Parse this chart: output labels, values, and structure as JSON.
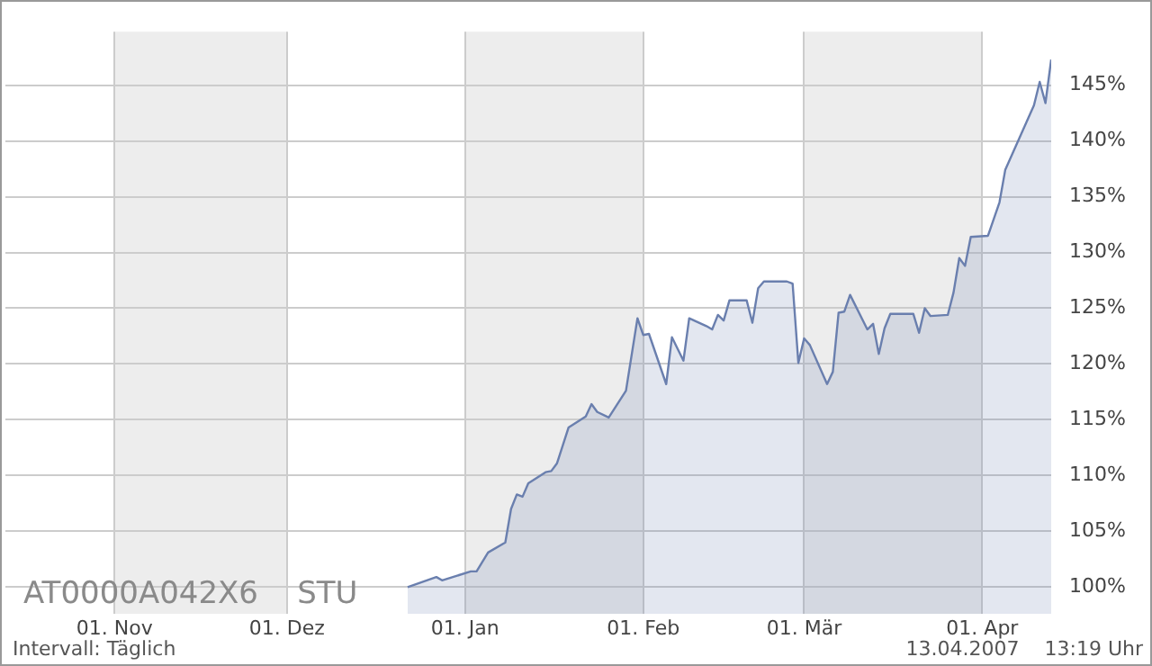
{
  "chart_data": {
    "type": "area",
    "x": [
      "2006-12-22",
      "2006-12-27",
      "2006-12-28",
      "2007-01-02",
      "2007-01-03",
      "2007-01-05",
      "2007-01-08",
      "2007-01-09",
      "2007-01-10",
      "2007-01-11",
      "2007-01-12",
      "2007-01-15",
      "2007-01-16",
      "2007-01-17",
      "2007-01-19",
      "2007-01-22",
      "2007-01-23",
      "2007-01-24",
      "2007-01-26",
      "2007-01-29",
      "2007-01-31",
      "2007-02-01",
      "2007-02-02",
      "2007-02-05",
      "2007-02-06",
      "2007-02-08",
      "2007-02-09",
      "2007-02-12",
      "2007-02-13",
      "2007-02-14",
      "2007-02-15",
      "2007-02-16",
      "2007-02-19",
      "2007-02-20",
      "2007-02-21",
      "2007-02-22",
      "2007-02-26",
      "2007-02-27",
      "2007-02-28",
      "2007-03-01",
      "2007-03-02",
      "2007-03-05",
      "2007-03-06",
      "2007-03-07",
      "2007-03-08",
      "2007-03-09",
      "2007-03-12",
      "2007-03-13",
      "2007-03-14",
      "2007-03-15",
      "2007-03-16",
      "2007-03-20",
      "2007-03-21",
      "2007-03-22",
      "2007-03-23",
      "2007-03-26",
      "2007-03-27",
      "2007-03-28",
      "2007-03-29",
      "2007-03-30",
      "2007-04-02",
      "2007-04-04",
      "2007-04-05",
      "2007-04-10",
      "2007-04-11",
      "2007-04-12",
      "2007-04-13"
    ],
    "series": [
      {
        "color": "#6a7fae",
        "values": [
          100.0,
          100.9,
          100.6,
          101.4,
          101.4,
          103.1,
          104.0,
          107.0,
          108.3,
          108.1,
          109.3,
          110.3,
          110.4,
          111.1,
          114.3,
          115.3,
          116.4,
          115.7,
          115.2,
          117.6,
          124.1,
          122.6,
          122.7,
          118.2,
          122.4,
          120.3,
          124.1,
          123.4,
          123.1,
          124.4,
          123.9,
          125.7,
          125.7,
          123.7,
          126.8,
          127.4,
          127.4,
          127.2,
          120.1,
          122.3,
          121.7,
          118.2,
          119.3,
          124.6,
          124.7,
          126.2,
          123.1,
          123.6,
          120.9,
          123.2,
          124.5,
          124.5,
          122.8,
          125.0,
          124.3,
          124.4,
          126.4,
          129.5,
          128.8,
          131.4,
          131.5,
          134.5,
          137.4,
          143.2,
          145.3,
          143.4,
          147.3
        ]
      }
    ],
    "xlim": [
      "2006-10-13",
      "2007-04-13"
    ],
    "xticks": [
      {
        "value": "2006-11-01",
        "label": "01. Nov"
      },
      {
        "value": "2006-12-01",
        "label": "01. Dez"
      },
      {
        "value": "2007-01-01",
        "label": "01. Jan"
      },
      {
        "value": "2007-02-01",
        "label": "01. Feb"
      },
      {
        "value": "2007-03-01",
        "label": "01. Mär"
      },
      {
        "value": "2007-04-01",
        "label": "01. Apr"
      }
    ],
    "ylim": [
      97.6,
      149.8
    ],
    "yticks": [
      {
        "value": 100,
        "label": "100%"
      },
      {
        "value": 105,
        "label": "105%"
      },
      {
        "value": 110,
        "label": "110%"
      },
      {
        "value": 115,
        "label": "115%"
      },
      {
        "value": 120,
        "label": "120%"
      },
      {
        "value": 125,
        "label": "125%"
      },
      {
        "value": 130,
        "label": "130%"
      },
      {
        "value": 135,
        "label": "135%"
      },
      {
        "value": 140,
        "label": "140%"
      },
      {
        "value": 145,
        "label": "145%"
      }
    ],
    "bands": [
      {
        "axis": "x",
        "from": "2006-11-01",
        "to": "2006-12-01",
        "color": "#ededed"
      },
      {
        "axis": "x",
        "from": "2007-01-01",
        "to": "2007-02-01",
        "color": "#ededed"
      },
      {
        "axis": "x",
        "from": "2007-03-01",
        "to": "2007-04-01",
        "color": "#ededed"
      }
    ],
    "annotations": [
      "AT0000A042X6    STU",
      "Intervall: Täglich",
      "13.04.2007    13:19 Uhr"
    ],
    "grid": true,
    "legend": false,
    "marker": "none",
    "line_style": "solid"
  }
}
